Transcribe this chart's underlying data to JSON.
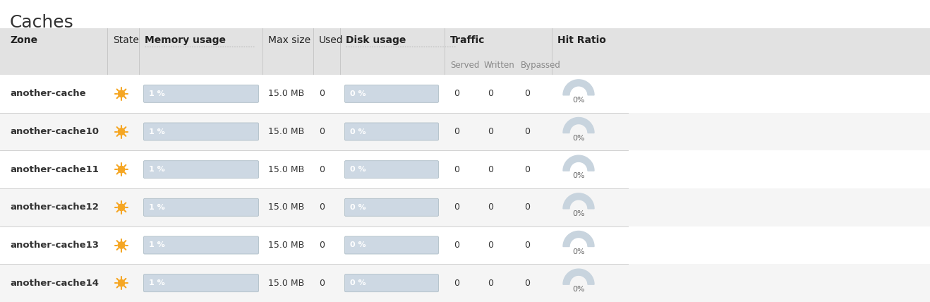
{
  "title": "Caches",
  "title_fontsize": 18,
  "background_color": "#ffffff",
  "header_bg": "#e2e2e2",
  "row_bg_white": "#ffffff",
  "row_bg_gray": "#f5f5f5",
  "divider_color": "#d0d0d0",
  "col_headers": [
    "Zone",
    "State",
    "Memory usage",
    "Max size",
    "Used",
    "Disk usage",
    "Traffic",
    "Hit Ratio"
  ],
  "sub_headers": [
    "Served",
    "Written",
    "Bypassed"
  ],
  "rows": [
    {
      "zone": "another-cache",
      "max_size": "15.0 MB",
      "used": "0",
      "traffic": [
        "0",
        "0",
        "0"
      ],
      "hit_ratio": "0%",
      "mem_pct": 1,
      "disk_pct": 0
    },
    {
      "zone": "another-cache10",
      "max_size": "15.0 MB",
      "used": "0",
      "traffic": [
        "0",
        "0",
        "0"
      ],
      "hit_ratio": "0%",
      "mem_pct": 1,
      "disk_pct": 0
    },
    {
      "zone": "another-cache11",
      "max_size": "15.0 MB",
      "used": "0",
      "traffic": [
        "0",
        "0",
        "0"
      ],
      "hit_ratio": "0%",
      "mem_pct": 1,
      "disk_pct": 0
    },
    {
      "zone": "another-cache12",
      "max_size": "15.0 MB",
      "used": "0",
      "traffic": [
        "0",
        "0",
        "0"
      ],
      "hit_ratio": "0%",
      "mem_pct": 1,
      "disk_pct": 0
    },
    {
      "zone": "another-cache13",
      "max_size": "15.0 MB",
      "used": "0",
      "traffic": [
        "0",
        "0",
        "0"
      ],
      "hit_ratio": "0%",
      "mem_pct": 1,
      "disk_pct": 0
    },
    {
      "zone": "another-cache14",
      "max_size": "15.0 MB",
      "used": "0",
      "traffic": [
        "0",
        "0",
        "0"
      ],
      "hit_ratio": "0%",
      "mem_pct": 1,
      "disk_pct": 0
    }
  ],
  "bar_bg_color": "#cdd8e3",
  "bar_fill_color": "#4d8ec4",
  "bar_text_color": "#ffffff",
  "cell_text_color": "#333333",
  "header_text_color": "#222222",
  "subheader_text_color": "#888888",
  "gauge_bg_color": "#c8d4de",
  "gauge_text_color": "#666666",
  "sun_color": "#f5a623",
  "col_header_fontsize": 10,
  "sub_header_fontsize": 8.5,
  "cell_fontsize": 9,
  "zone_fontsize": 9.5,
  "bar_label_fontsize": 8,
  "gauge_label_fontsize": 8
}
